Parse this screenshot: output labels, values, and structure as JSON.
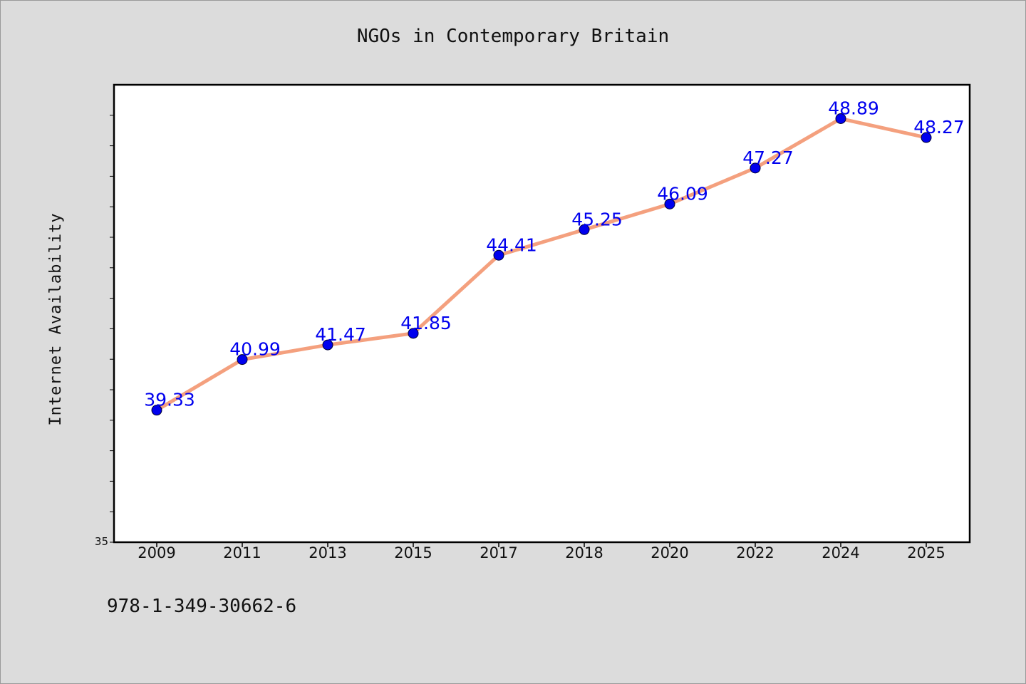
{
  "chart_data": {
    "type": "line",
    "title": "NGOs in Contemporary Britain",
    "xlabel": "",
    "ylabel": "Internet Availability",
    "x": [
      "2009",
      "2011",
      "2013",
      "2015",
      "2017",
      "2018",
      "2020",
      "2022",
      "2024",
      "2025"
    ],
    "series": [
      {
        "values": [
          39.33,
          40.99,
          41.47,
          41.85,
          44.41,
          45.25,
          46.09,
          47.27,
          48.89,
          48.27
        ],
        "line_color": "#f4a07e",
        "marker_color": "#0000ee"
      }
    ],
    "data_labels": [
      "39.33",
      "40.99",
      "41.47",
      "41.85",
      "44.41",
      "45.25",
      "46.09",
      "47.27",
      "48.89",
      "48.27"
    ],
    "data_label_color": "#0000ee",
    "ylim": [
      35,
      50
    ],
    "yticks_labeled": [
      "35"
    ],
    "ytick_step": 1,
    "grid": false,
    "legend": "none"
  },
  "footer": {
    "isbn": "978-1-349-30662-6"
  }
}
